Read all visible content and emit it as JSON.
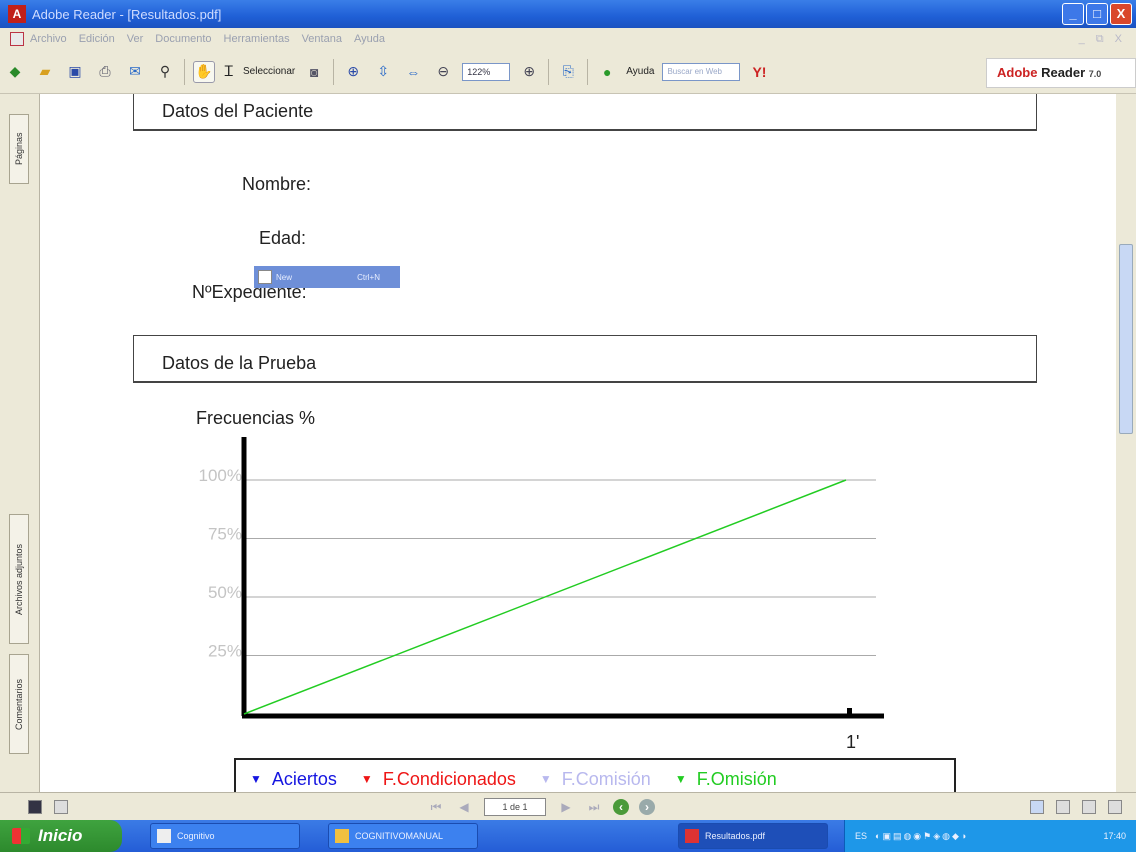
{
  "window": {
    "title": "Adobe Reader - [Resultados.pdf]",
    "controls": [
      "_",
      "□",
      "X"
    ]
  },
  "menu": {
    "items": [
      "Archivo",
      "Edición",
      "Ver",
      "Documento",
      "Herramientas",
      "Ventana",
      "Ayuda"
    ],
    "right": "_ ⧉ X"
  },
  "toolbar": {
    "select_label": "Seleccionar",
    "zoom_value": "122%",
    "help_label": "Ayuda",
    "search_placeholder": "Buscar en Web",
    "brand": "Adobe",
    "brand_product": "Reader",
    "brand_version": "7.0"
  },
  "sidebar": {
    "tabs": [
      "Páginas",
      "Archivos adjuntos",
      "Comentarios"
    ]
  },
  "document": {
    "patient_header": "Datos del Paciente",
    "fields": {
      "nombre": "Nombre:",
      "edad": "Edad:",
      "expediente": "NºExpediente:"
    },
    "test_header": "Datos de la Prueba",
    "context_hint": {
      "label": "New",
      "shortcut": "Ctrl+N"
    }
  },
  "chart_data": {
    "type": "line",
    "title": "Frecuencias %",
    "xlabel": "",
    "ylabel": "",
    "x_ticks": [
      "1'"
    ],
    "y_ticks": [
      "25%",
      "50%",
      "75%",
      "100%"
    ],
    "ylim": [
      0,
      100
    ],
    "xlim": [
      0,
      1
    ],
    "grid": true,
    "series": [
      {
        "name": "F.Omisión",
        "color": "#22cc22",
        "x": [
          0,
          1
        ],
        "y": [
          0,
          100
        ]
      }
    ],
    "legend": [
      {
        "name": "Aciertos",
        "color": "#1515e0"
      },
      {
        "name": "F.Condicionados",
        "color": "#ee1515"
      },
      {
        "name": "F.Comisión",
        "color": "#b8b8ee"
      },
      {
        "name": "F.Omisión",
        "color": "#22cc22"
      }
    ],
    "legend_position": "bottom"
  },
  "statusbar": {
    "page": "1 de 1"
  },
  "taskbar": {
    "start": "Inicio",
    "tasks": [
      "Cognitivo",
      "COGNITIVOMANUAL",
      "Resultados.pdf"
    ],
    "tray_lang": "ES",
    "clock": "17:40"
  }
}
